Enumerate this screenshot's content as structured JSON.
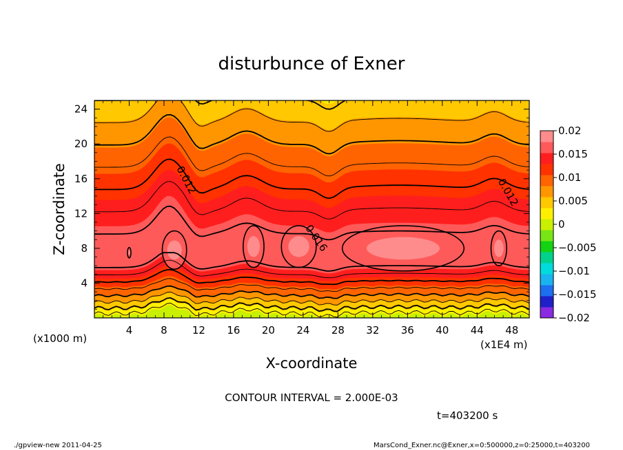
{
  "chart_data": {
    "type": "heatmap",
    "title": "disturbunce of Exner",
    "xlabel": "X-coordinate",
    "ylabel": "Z-coordinate",
    "x_unit_note": "(x1E4 m)",
    "y_unit_note": "(x1000 m)",
    "xlim": [
      0,
      50
    ],
    "ylim": [
      0,
      25
    ],
    "x_ticks": [
      4,
      8,
      12,
      16,
      20,
      24,
      28,
      32,
      36,
      40,
      44,
      48
    ],
    "y_ticks": [
      4,
      8,
      12,
      16,
      20,
      24
    ],
    "x_tick_labels": [
      "4",
      "8",
      "12",
      "16",
      "20",
      "24",
      "28",
      "32",
      "36",
      "40",
      "44",
      "48"
    ],
    "y_tick_labels": [
      "4",
      "8",
      "12",
      "16",
      "20",
      "24"
    ],
    "colorbar": {
      "min": -0.02,
      "max": 0.02,
      "ticks": [
        0.02,
        0.015,
        0.01,
        0.005,
        0,
        -0.005,
        -0.01,
        -0.015,
        -0.02
      ],
      "tick_labels": [
        "0.02",
        "0.015",
        "0.01",
        "0.005",
        "0",
        "−0.005",
        "−0.01",
        "−0.015",
        "−0.02"
      ],
      "colors": [
        "#8a2be2",
        "#2020c8",
        "#1e6ef0",
        "#19b4f0",
        "#00dcdc",
        "#00d28c",
        "#14d214",
        "#78e614",
        "#c8f000",
        "#fff000",
        "#ffc800",
        "#ff9600",
        "#ff6400",
        "#ff3200",
        "#ff1e1e",
        "#ff5a5a",
        "#ff8c8c"
      ]
    },
    "contour_labels": [
      "0.012",
      "0.016",
      "0.012"
    ],
    "contour_interval_text": "CONTOUR INTERVAL = 2.000E-03",
    "time_text": "t=403200 s",
    "profile_description": "field ~0 near surface, maximum ~0.017 near z=6-9 km, decreasing to ~0.005 near z=25 km"
  },
  "footer": {
    "left": "./gpview-new   2011-04-25",
    "right": "MarsCond_Exner.nc@Exner,x=0:500000,z=0:25000,t=403200"
  }
}
